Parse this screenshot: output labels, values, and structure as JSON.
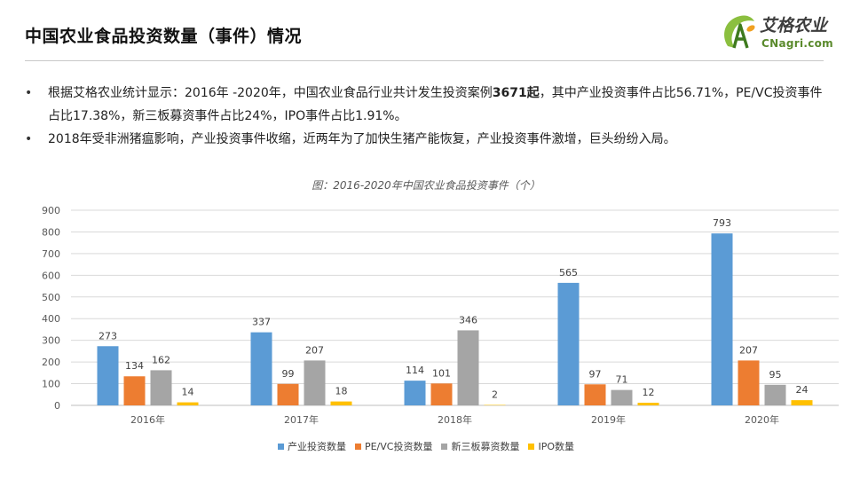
{
  "header": {
    "title": "中国农业食品投资数量（事件）情况",
    "logo_cn": "艾格农业",
    "logo_en": "CNagri.com",
    "logo_color": "#5a8a2c"
  },
  "bullets": [
    {
      "pre": "根据艾格农业统计显示：2016年 -2020年，中国农业食品行业共计发生投资案例",
      "bold": "3671起",
      "post": "，其中产业投资事件占比56.71%，PE/VC投资事件占比17.38%，新三板募资事件占比24%，IPO事件占比1.91%。"
    },
    {
      "pre": "2018年受非洲猪瘟影响，产业投资事件收缩，近两年为了加快生猪产能恢复，产业投资事件激增，巨头纷纷入局。",
      "bold": "",
      "post": ""
    }
  ],
  "chart_data": {
    "type": "bar",
    "title": "图：2016-2020年中国农业食品投资事件（个）",
    "categories": [
      "2016年",
      "2017年",
      "2018年",
      "2019年",
      "2020年"
    ],
    "series": [
      {
        "name": "产业投资数量",
        "color": "#5b9bd5",
        "values": [
          273,
          337,
          114,
          565,
          793
        ]
      },
      {
        "name": "PE/VC投资数量",
        "color": "#ed7d31",
        "values": [
          134,
          99,
          101,
          97,
          207
        ]
      },
      {
        "name": "新三板募资数量",
        "color": "#a5a5a5",
        "values": [
          162,
          207,
          346,
          71,
          95
        ]
      },
      {
        "name": "IPO数量",
        "color": "#ffc000",
        "values": [
          14,
          18,
          2,
          12,
          24
        ]
      }
    ],
    "ylim": [
      0,
      900
    ],
    "yticks": [
      0,
      100,
      200,
      300,
      400,
      500,
      600,
      700,
      800,
      900
    ],
    "xlabel": "",
    "ylabel": "",
    "grid": true,
    "legend_position": "bottom",
    "data_labels": true
  }
}
